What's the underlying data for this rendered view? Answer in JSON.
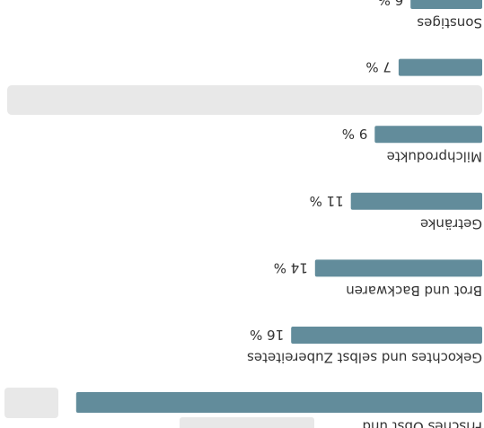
{
  "chart_data": {
    "type": "bar",
    "categories": [
      "Frisches Obst und",
      "Gekochtes und selbst Zubereitetes",
      "Brot und Backwaren",
      "Getränke",
      "Milchprodukte",
      null,
      "Sonstiges"
    ],
    "values": [
      34,
      16,
      14,
      11,
      9,
      7,
      6
    ],
    "value_labels": [
      null,
      "16 %",
      "14 %",
      "11 %",
      "9 %",
      "7 %",
      "6 %"
    ],
    "color": "#628c9b"
  }
}
